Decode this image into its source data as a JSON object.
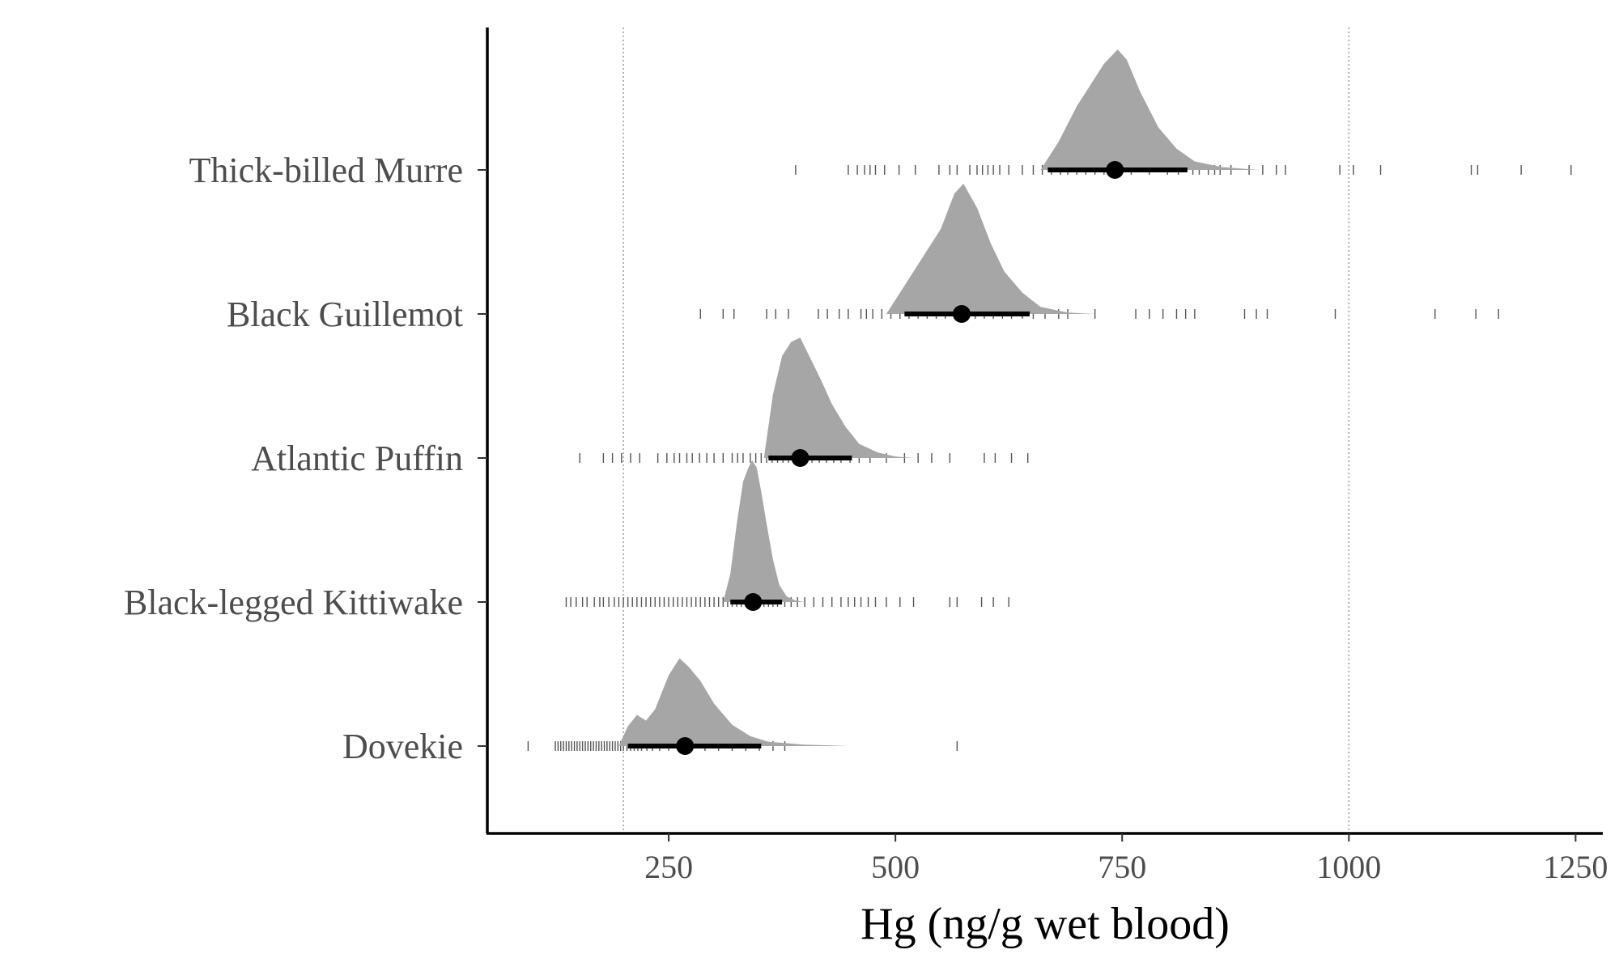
{
  "chart_data": {
    "type": "density-interval",
    "title": "",
    "xlabel": "Hg (ng/g wet blood)",
    "ylabel": "",
    "xlim": [
      50,
      1280
    ],
    "x_ticks": [
      250,
      500,
      750,
      1000,
      1250
    ],
    "reference_lines": [
      200,
      1000
    ],
    "grid": false,
    "colors": {
      "density": "#a6a6a6",
      "interval": "#000000",
      "rug": "#555555",
      "ref_line": "#8c8c8c",
      "axis": "#000000"
    },
    "categories": [
      "Thick-billed Murre",
      "Black Guillemot",
      "Atlantic Puffin",
      "Black-legged Kittiwake",
      "Dovekie"
    ],
    "series": [
      {
        "category": "Thick-billed Murre",
        "point": 742,
        "interval": [
          668,
          822
        ],
        "density": [
          [
            660,
            0
          ],
          [
            680,
            0.2
          ],
          [
            700,
            0.45
          ],
          [
            715,
            0.6
          ],
          [
            730,
            0.75
          ],
          [
            745,
            0.85
          ],
          [
            755,
            0.78
          ],
          [
            770,
            0.55
          ],
          [
            790,
            0.3
          ],
          [
            810,
            0.15
          ],
          [
            830,
            0.06
          ],
          [
            860,
            0.02
          ],
          [
            900,
            0
          ]
        ],
        "rug": [
          390,
          448,
          458,
          466,
          472,
          478,
          488,
          504,
          522,
          548,
          560,
          568,
          582,
          590,
          596,
          602,
          608,
          615,
          625,
          640,
          652,
          662,
          672,
          682,
          690,
          700,
          710,
          720,
          730,
          745,
          760,
          780,
          800,
          812,
          828,
          835,
          845,
          852,
          858,
          870,
          890,
          905,
          920,
          930,
          990,
          1005,
          1035,
          1135,
          1142,
          1190,
          1245
        ]
      },
      {
        "category": "Black Guillemot",
        "point": 573,
        "interval": [
          510,
          648
        ],
        "density": [
          [
            490,
            0
          ],
          [
            505,
            0.15
          ],
          [
            520,
            0.3
          ],
          [
            535,
            0.45
          ],
          [
            550,
            0.6
          ],
          [
            565,
            0.85
          ],
          [
            575,
            0.92
          ],
          [
            590,
            0.75
          ],
          [
            605,
            0.5
          ],
          [
            620,
            0.3
          ],
          [
            640,
            0.15
          ],
          [
            660,
            0.05
          ],
          [
            690,
            0.01
          ],
          [
            720,
            0
          ]
        ],
        "rug": [
          285,
          310,
          322,
          358,
          368,
          382,
          415,
          425,
          438,
          448,
          462,
          468,
          475,
          485,
          495,
          505,
          515,
          525,
          535,
          545,
          555,
          565,
          575,
          588,
          598,
          608,
          618,
          628,
          640,
          652,
          665,
          680,
          690,
          720,
          765,
          780,
          795,
          810,
          820,
          830,
          885,
          898,
          910,
          985,
          1095,
          1140,
          1165
        ]
      },
      {
        "category": "Atlantic Puffin",
        "point": 395,
        "interval": [
          360,
          452
        ],
        "density": [
          [
            355,
            0
          ],
          [
            365,
            0.45
          ],
          [
            375,
            0.72
          ],
          [
            385,
            0.82
          ],
          [
            395,
            0.85
          ],
          [
            405,
            0.72
          ],
          [
            418,
            0.55
          ],
          [
            430,
            0.38
          ],
          [
            445,
            0.22
          ],
          [
            460,
            0.1
          ],
          [
            480,
            0.04
          ],
          [
            500,
            0.01
          ],
          [
            520,
            0
          ]
        ],
        "rug": [
          152,
          178,
          188,
          198,
          208,
          218,
          238,
          248,
          256,
          262,
          270,
          276,
          284,
          292,
          300,
          310,
          320,
          326,
          332,
          340,
          346,
          352,
          358,
          364,
          370,
          376,
          382,
          388,
          394,
          400,
          408,
          416,
          424,
          432,
          440,
          450,
          460,
          472,
          490,
          510,
          525,
          540,
          560,
          598,
          610,
          628,
          646
        ]
      },
      {
        "category": "Black-legged Kittiwake",
        "point": 343,
        "interval": [
          318,
          375
        ],
        "density": [
          [
            310,
            0
          ],
          [
            318,
            0.2
          ],
          [
            325,
            0.55
          ],
          [
            332,
            0.85
          ],
          [
            338,
            0.95
          ],
          [
            342,
            1.0
          ],
          [
            347,
            0.95
          ],
          [
            352,
            0.78
          ],
          [
            358,
            0.55
          ],
          [
            365,
            0.3
          ],
          [
            372,
            0.12
          ],
          [
            380,
            0.04
          ],
          [
            390,
            0.01
          ],
          [
            400,
            0
          ]
        ],
        "rug": [
          137,
          142,
          148,
          155,
          160,
          168,
          174,
          178,
          184,
          190,
          195,
          200,
          205,
          210,
          215,
          220,
          225,
          230,
          235,
          240,
          245,
          250,
          255,
          260,
          265,
          270,
          275,
          280,
          285,
          290,
          295,
          300,
          305,
          310,
          315,
          320,
          325,
          330,
          335,
          340,
          345,
          350,
          355,
          360,
          365,
          370,
          378,
          385,
          392,
          400,
          410,
          420,
          430,
          440,
          448,
          455,
          462,
          470,
          478,
          490,
          505,
          520,
          560,
          568,
          595,
          608,
          625
        ]
      },
      {
        "category": "Dovekie",
        "point": 268,
        "interval": [
          205,
          352
        ],
        "density": [
          [
            195,
            0
          ],
          [
            205,
            0.14
          ],
          [
            215,
            0.22
          ],
          [
            225,
            0.18
          ],
          [
            235,
            0.26
          ],
          [
            250,
            0.5
          ],
          [
            262,
            0.62
          ],
          [
            272,
            0.56
          ],
          [
            285,
            0.46
          ],
          [
            300,
            0.3
          ],
          [
            320,
            0.15
          ],
          [
            340,
            0.07
          ],
          [
            360,
            0.03
          ],
          [
            400,
            0.01
          ],
          [
            450,
            0
          ]
        ],
        "rug": [
          95,
          125,
          128,
          131,
          134,
          137,
          140,
          143,
          146,
          149,
          152,
          155,
          158,
          161,
          164,
          167,
          170,
          173,
          176,
          179,
          182,
          185,
          188,
          191,
          194,
          197,
          200,
          204,
          208,
          212,
          216,
          220,
          226,
          232,
          240,
          250,
          262,
          275,
          290,
          305,
          320,
          335,
          350,
          365,
          378,
          568
        ]
      }
    ]
  }
}
